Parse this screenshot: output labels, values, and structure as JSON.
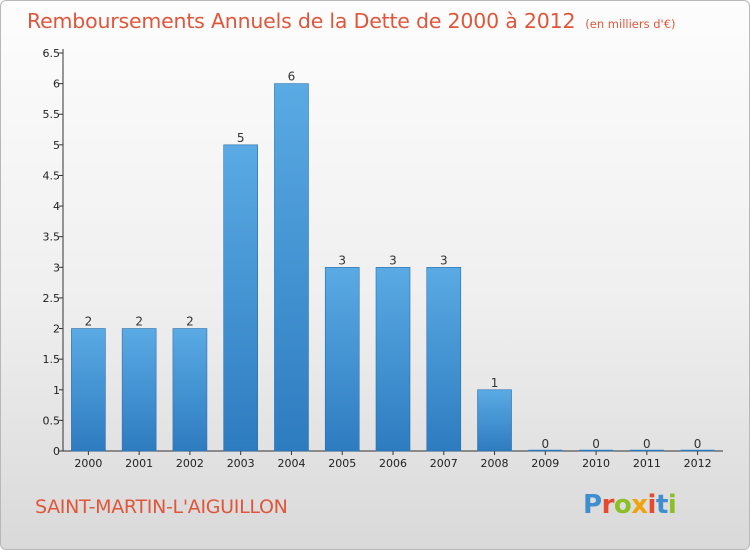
{
  "title": "Remboursements Annuels de la Dette de 2000 à 2012",
  "unit": "(en milliers d'€)",
  "commune": "SAINT-MARTIN-L'AIGUILLON",
  "logo": {
    "text": "Proxiti",
    "letter_colors": [
      "#3e8ed0",
      "#e64a2e",
      "#8cbf26",
      "#f0a30a",
      "#e64a2e",
      "#3e8ed0",
      "#8cbf26"
    ]
  },
  "colors": {
    "bar_top": "#5aaae4",
    "bar_bottom": "#2e7cc0",
    "text_accent": "#e0563a"
  },
  "chart_data": {
    "type": "bar",
    "categories": [
      "2000",
      "2001",
      "2002",
      "2003",
      "2004",
      "2005",
      "2006",
      "2007",
      "2008",
      "2009",
      "2010",
      "2011",
      "2012"
    ],
    "values": [
      2,
      2,
      2,
      5,
      6,
      3,
      3,
      3,
      1,
      0,
      0,
      0,
      0
    ],
    "data_labels": [
      "2",
      "2",
      "2",
      "5",
      "6",
      "3",
      "3",
      "3",
      "1",
      "0",
      "0",
      "0",
      "0"
    ],
    "y_ticks": [
      "0",
      "0.5",
      "1",
      "1.5",
      "2",
      "2.5",
      "3",
      "3.5",
      "4",
      "4.5",
      "5",
      "5.5",
      "6",
      "6.5"
    ],
    "ylim": [
      0,
      6.5
    ],
    "grid": false,
    "xlabel": "",
    "ylabel": ""
  }
}
